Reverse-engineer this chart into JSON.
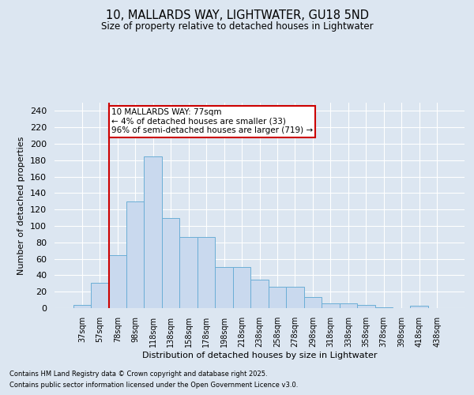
{
  "title1": "10, MALLARDS WAY, LIGHTWATER, GU18 5ND",
  "title2": "Size of property relative to detached houses in Lightwater",
  "xlabel": "Distribution of detached houses by size in Lightwater",
  "ylabel": "Number of detached properties",
  "footnote1": "Contains HM Land Registry data © Crown copyright and database right 2025.",
  "footnote2": "Contains public sector information licensed under the Open Government Licence v3.0.",
  "annotation_line1": "10 MALLARDS WAY: 77sqm",
  "annotation_line2": "← 4% of detached houses are smaller (33)",
  "annotation_line3": "96% of semi-detached houses are larger (719) →",
  "bar_color": "#c9d9ee",
  "bar_edge_color": "#6baed6",
  "vline_color": "#cc0000",
  "vline_x": 1.5,
  "background_color": "#dce6f1",
  "plot_bg_color": "#dce6f1",
  "categories": [
    "37sqm",
    "57sqm",
    "78sqm",
    "98sqm",
    "118sqm",
    "138sqm",
    "158sqm",
    "178sqm",
    "198sqm",
    "218sqm",
    "238sqm",
    "258sqm",
    "278sqm",
    "298sqm",
    "318sqm",
    "338sqm",
    "358sqm",
    "378sqm",
    "398sqm",
    "418sqm",
    "438sqm"
  ],
  "values": [
    4,
    31,
    64,
    130,
    185,
    110,
    87,
    87,
    50,
    50,
    35,
    26,
    26,
    13,
    6,
    6,
    4,
    1,
    0,
    3,
    0
  ],
  "ylim": [
    0,
    250
  ],
  "yticks": [
    0,
    20,
    40,
    60,
    80,
    100,
    120,
    140,
    160,
    180,
    200,
    220,
    240
  ]
}
